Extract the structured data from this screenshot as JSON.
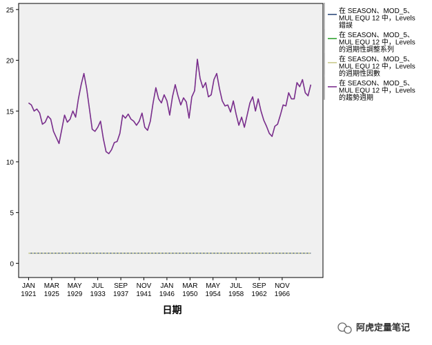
{
  "chart_data": {
    "type": "line",
    "title": "",
    "xlabel": "日期",
    "ylabel": "",
    "ylim": [
      -1.4,
      25.6
    ],
    "grid": false,
    "legend_position": "right",
    "y_ticks": [
      0,
      5,
      10,
      15,
      20,
      25
    ],
    "x_ticks": [
      {
        "month": "JAN",
        "year": "1921",
        "t": 1921.0
      },
      {
        "month": "MAR",
        "year": "1925",
        "t": 1925.17
      },
      {
        "month": "MAY",
        "year": "1929",
        "t": 1929.33
      },
      {
        "month": "JUL",
        "year": "1933",
        "t": 1933.5
      },
      {
        "month": "SEP",
        "year": "1937",
        "t": 1937.67
      },
      {
        "month": "NOV",
        "year": "1941",
        "t": 1941.83
      },
      {
        "month": "JAN",
        "year": "1946",
        "t": 1946.0
      },
      {
        "month": "MAR",
        "year": "1950",
        "t": 1950.17
      },
      {
        "month": "MAY",
        "year": "1954",
        "t": 1954.33
      },
      {
        "month": "JUL",
        "year": "1958",
        "t": 1958.5
      },
      {
        "month": "SEP",
        "year": "1962",
        "t": 1962.67
      },
      {
        "month": "NOV",
        "year": "1966",
        "t": 1966.83
      }
    ],
    "x": [
      1921.0,
      1921.5,
      1922.0,
      1922.5,
      1923.0,
      1923.5,
      1924.0,
      1924.5,
      1925.0,
      1925.5,
      1926.0,
      1926.5,
      1927.0,
      1927.5,
      1928.0,
      1928.5,
      1929.0,
      1929.5,
      1930.0,
      1930.5,
      1931.0,
      1931.5,
      1932.0,
      1932.5,
      1933.0,
      1933.5,
      1934.0,
      1934.5,
      1935.0,
      1935.5,
      1936.0,
      1936.5,
      1937.0,
      1937.5,
      1938.0,
      1938.5,
      1939.0,
      1939.5,
      1940.0,
      1940.5,
      1941.0,
      1941.5,
      1942.0,
      1942.5,
      1943.0,
      1943.5,
      1944.0,
      1944.5,
      1945.0,
      1945.5,
      1946.0,
      1946.5,
      1947.0,
      1947.5,
      1948.0,
      1948.5,
      1949.0,
      1949.5,
      1950.0,
      1950.5,
      1951.0,
      1951.5,
      1952.0,
      1952.5,
      1953.0,
      1953.5,
      1954.0,
      1954.5,
      1955.0,
      1955.5,
      1956.0,
      1956.5,
      1957.0,
      1957.5,
      1958.0,
      1958.5,
      1959.0,
      1959.5,
      1960.0,
      1960.5,
      1961.0,
      1961.5,
      1962.0,
      1962.5,
      1963.0,
      1963.5,
      1964.0,
      1964.5,
      1965.0,
      1965.5,
      1966.0,
      1966.5,
      1967.0,
      1967.5,
      1968.0,
      1968.5,
      1969.0,
      1969.5,
      1970.0,
      1970.5,
      1971.0,
      1971.5,
      1972.0
    ],
    "series": [
      {
        "name": "在 SEASON、MOD_5、MUL EQU 12 中，Levels 錯誤",
        "color": "#2f4b7c",
        "values": [
          1.0,
          1.0,
          1.0,
          1.0,
          1.0,
          1.0,
          1.0,
          1.0,
          1.0,
          1.0,
          1.0,
          1.0,
          1.0,
          1.0,
          1.0,
          1.0,
          1.0,
          1.0,
          1.0,
          1.0,
          1.0,
          1.0,
          1.0,
          1.0,
          1.0,
          1.0,
          1.0,
          1.0,
          1.0,
          1.0,
          1.0,
          1.0,
          1.0,
          1.0,
          1.0,
          1.0,
          1.0,
          1.0,
          1.0,
          1.0,
          1.0,
          1.0,
          1.0,
          1.0,
          1.0,
          1.0,
          1.0,
          1.0,
          1.0,
          1.0,
          1.0,
          1.0,
          1.0,
          1.0,
          1.0,
          1.0,
          1.0,
          1.0,
          1.0,
          1.0,
          1.0,
          1.0,
          1.0,
          1.0,
          1.0,
          1.0,
          1.0,
          1.0,
          1.0,
          1.0,
          1.0,
          1.0,
          1.0,
          1.0,
          1.0,
          1.0,
          1.0,
          1.0,
          1.0,
          1.0,
          1.0,
          1.0,
          1.0,
          1.0,
          1.0,
          1.0,
          1.0,
          1.0,
          1.0,
          1.0,
          1.0,
          1.0,
          1.0,
          1.0,
          1.0,
          1.0,
          1.0,
          1.0,
          1.0,
          1.0,
          1.0,
          1.0,
          1.0
        ]
      },
      {
        "name": "在 SEASON、MOD_5、MUL EQU 12 中，Levels 的週期性調整系列",
        "color": "#2ea02e",
        "values": [
          15.8,
          15.6,
          15.0,
          15.2,
          14.8,
          13.7,
          13.9,
          14.5,
          14.2,
          13.0,
          12.4,
          11.8,
          13.2,
          14.6,
          13.9,
          14.2,
          15.0,
          14.4,
          16.2,
          17.6,
          18.7,
          17.2,
          15.2,
          13.2,
          13.0,
          13.4,
          14.0,
          12.3,
          11.0,
          10.8,
          11.2,
          11.9,
          12.0,
          12.8,
          14.6,
          14.3,
          14.7,
          14.2,
          14.0,
          13.6,
          14.0,
          14.8,
          13.4,
          13.1,
          14.0,
          15.8,
          17.3,
          16.2,
          15.8,
          16.6,
          16.0,
          14.6,
          16.4,
          17.6,
          16.5,
          15.6,
          16.3,
          15.9,
          14.3,
          16.4,
          17.0,
          20.1,
          18.2,
          17.3,
          17.8,
          16.4,
          16.6,
          18.1,
          18.7,
          17.2,
          16.0,
          15.5,
          15.6,
          14.9,
          16.0,
          14.7,
          13.6,
          14.4,
          13.4,
          14.6,
          15.8,
          16.4,
          15.0,
          16.2,
          15.0,
          14.1,
          13.5,
          12.8,
          12.5,
          13.5,
          13.7,
          14.6,
          15.6,
          15.5,
          16.8,
          16.2,
          16.2,
          17.8,
          17.4,
          18.1,
          16.8,
          16.5,
          17.6
        ]
      },
      {
        "name": "在 SEASON、MOD_5、MUL EQU 12 中，Levels 的週期性因數",
        "color": "#c9c98a",
        "values": [
          1.0,
          1.0,
          1.0,
          1.0,
          1.0,
          1.0,
          1.0,
          1.0,
          1.0,
          1.0,
          1.0,
          1.0,
          1.0,
          1.0,
          1.0,
          1.0,
          1.0,
          1.0,
          1.0,
          1.0,
          1.0,
          1.0,
          1.0,
          1.0,
          1.0,
          1.0,
          1.0,
          1.0,
          1.0,
          1.0,
          1.0,
          1.0,
          1.0,
          1.0,
          1.0,
          1.0,
          1.0,
          1.0,
          1.0,
          1.0,
          1.0,
          1.0,
          1.0,
          1.0,
          1.0,
          1.0,
          1.0,
          1.0,
          1.0,
          1.0,
          1.0,
          1.0,
          1.0,
          1.0,
          1.0,
          1.0,
          1.0,
          1.0,
          1.0,
          1.0,
          1.0,
          1.0,
          1.0,
          1.0,
          1.0,
          1.0,
          1.0,
          1.0,
          1.0,
          1.0,
          1.0,
          1.0,
          1.0,
          1.0,
          1.0,
          1.0,
          1.0,
          1.0,
          1.0,
          1.0,
          1.0,
          1.0,
          1.0,
          1.0,
          1.0,
          1.0,
          1.0,
          1.0,
          1.0,
          1.0,
          1.0,
          1.0,
          1.0,
          1.0,
          1.0,
          1.0,
          1.0,
          1.0,
          1.0,
          1.0,
          1.0,
          1.0,
          1.0
        ]
      },
      {
        "name": "在 SEASON、MOD_5、MUL EQU 12 中，Levels 的趨勢週期",
        "color": "#7b2d8e",
        "values": [
          15.8,
          15.6,
          15.0,
          15.2,
          14.8,
          13.7,
          13.9,
          14.5,
          14.2,
          13.0,
          12.4,
          11.8,
          13.2,
          14.6,
          13.9,
          14.2,
          15.0,
          14.4,
          16.2,
          17.6,
          18.7,
          17.2,
          15.2,
          13.2,
          13.0,
          13.4,
          14.0,
          12.3,
          11.0,
          10.8,
          11.2,
          11.9,
          12.0,
          12.8,
          14.6,
          14.3,
          14.7,
          14.2,
          14.0,
          13.6,
          14.0,
          14.8,
          13.4,
          13.1,
          14.0,
          15.8,
          17.3,
          16.2,
          15.8,
          16.6,
          16.0,
          14.6,
          16.4,
          17.6,
          16.5,
          15.6,
          16.3,
          15.9,
          14.3,
          16.4,
          17.0,
          20.1,
          18.2,
          17.3,
          17.8,
          16.4,
          16.6,
          18.1,
          18.7,
          17.2,
          16.0,
          15.5,
          15.6,
          14.9,
          16.0,
          14.7,
          13.6,
          14.4,
          13.4,
          14.6,
          15.8,
          16.4,
          15.0,
          16.2,
          15.0,
          14.1,
          13.5,
          12.8,
          12.5,
          13.5,
          13.7,
          14.6,
          15.6,
          15.5,
          16.8,
          16.2,
          16.2,
          17.8,
          17.4,
          18.1,
          16.8,
          16.5,
          17.6
        ]
      }
    ]
  },
  "legend_lines": [
    [
      "在 SEASON、MOD_5、",
      "MUL EQU 12 中，Levels",
      "錯誤"
    ],
    [
      "在 SEASON、MOD_5、",
      "MUL EQU 12 中，Levels",
      "的週期性調整系列"
    ],
    [
      "在 SEASON、MOD_5、",
      "MUL EQU 12 中，Levels",
      "的週期性因數"
    ],
    [
      "在 SEASON、MOD_5、",
      "MUL EQU 12 中，Levels",
      "的趨勢週期"
    ]
  ],
  "watermark": {
    "text": "阿虎定量笔记",
    "icon": "wechat-icon"
  },
  "colors": {
    "plot_background": "#f0f0f0",
    "axis": "#000000"
  }
}
